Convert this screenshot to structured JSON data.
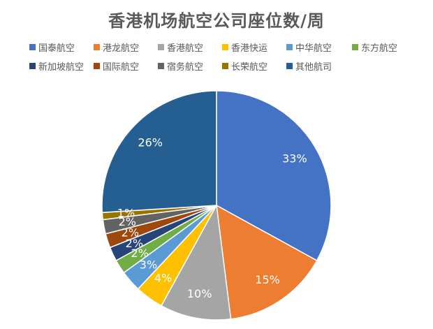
{
  "chart_data": {
    "type": "pie",
    "title": "香港机场航空公司座位数/周",
    "categories": [
      "国泰航空",
      "港龙航空",
      "香港航空",
      "香港快运",
      "中华航空",
      "东方航空",
      "新加坡航空",
      "国际航空",
      "宿务航空",
      "长荣航空",
      "其他航司"
    ],
    "values": [
      33,
      15,
      10,
      4,
      3,
      2,
      2,
      2,
      2,
      1,
      26
    ],
    "value_labels": [
      "33%",
      "15%",
      "10%",
      "4%",
      "3%",
      "2%",
      "2%",
      "2%",
      "2%",
      "1%",
      "26%"
    ],
    "colors": [
      "#4472C4",
      "#ED7D31",
      "#A5A5A5",
      "#FFC000",
      "#5B9BD5",
      "#70AD47",
      "#264478",
      "#9E480E",
      "#636363",
      "#997300",
      "#255E91"
    ],
    "legend": "top",
    "start_angle_deg": 0,
    "direction": "clockwise"
  }
}
